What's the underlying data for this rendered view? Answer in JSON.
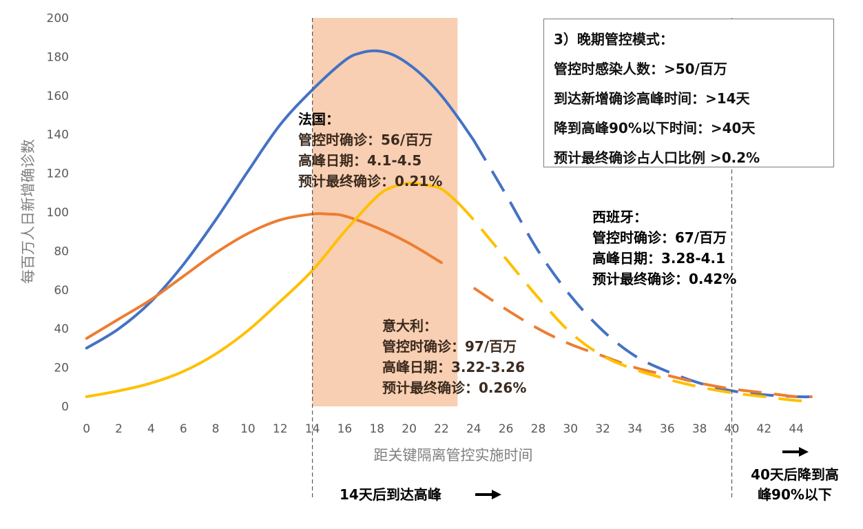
{
  "chart_data": {
    "type": "line",
    "title": "",
    "xlabel": "距关键隔离管控实施时间",
    "ylabel": "每百万人日新增确诊数",
    "xlim": [
      -0.5,
      45.7
    ],
    "ylim": [
      0,
      200
    ],
    "xticks": [
      0,
      2,
      4,
      6,
      8,
      10,
      12,
      14,
      16,
      18,
      20,
      22,
      24,
      26,
      28,
      30,
      32,
      34,
      36,
      38,
      40,
      42,
      44
    ],
    "yticks": [
      0,
      20,
      40,
      60,
      80,
      100,
      120,
      140,
      160,
      180,
      200
    ],
    "grid": false,
    "highlight_band": {
      "x_start": 14,
      "x_end": 23,
      "color": "#f8cfb2"
    },
    "markers": [
      14,
      40
    ],
    "series": [
      {
        "color": "#4472c4",
        "solid_until": 24,
        "x": [
          0,
          2,
          4,
          6,
          8,
          10,
          12,
          14,
          16,
          17,
          18,
          19,
          20,
          21,
          22,
          23,
          24,
          26,
          28,
          30,
          32,
          34,
          36,
          38,
          40,
          42,
          44,
          45
        ],
        "y": [
          30,
          40,
          54,
          73,
          96,
          121,
          145,
          163,
          178,
          182,
          183,
          181,
          176,
          169,
          160,
          149,
          137,
          109,
          80,
          57,
          39,
          26,
          18,
          12,
          8,
          6,
          5,
          5
        ]
      },
      {
        "color": "#ed7d31",
        "solid_until": 23,
        "x": [
          0,
          2,
          4,
          6,
          8,
          10,
          12,
          14,
          15,
          16,
          18,
          20,
          22,
          24,
          26,
          28,
          30,
          32,
          34,
          36,
          38,
          40,
          42,
          44,
          45
        ],
        "y": [
          35,
          45,
          55,
          67,
          79,
          89,
          96,
          99,
          99,
          98,
          92,
          84,
          74,
          61,
          50,
          40,
          32,
          26,
          20,
          16,
          12,
          9,
          7,
          5,
          5
        ]
      },
      {
        "color": "#ffc000",
        "solid_until": 23,
        "x": [
          0,
          2,
          4,
          6,
          8,
          10,
          12,
          14,
          16,
          18,
          19,
          20,
          21,
          22,
          23,
          24,
          26,
          28,
          30,
          32,
          34,
          36,
          38,
          40,
          42,
          44,
          45
        ],
        "y": [
          5,
          8,
          12,
          18,
          27,
          39,
          54,
          70,
          90,
          108,
          113,
          115,
          114,
          112,
          105,
          96,
          76,
          56,
          38,
          26,
          19,
          14,
          10,
          7,
          5,
          3,
          3
        ]
      }
    ],
    "annotations": [
      {
        "lines": [
          "法国：",
          "管控时确诊：56/百万",
          "高峰日期：4.1-4.5",
          "预计最终确诊：0.21%"
        ]
      },
      {
        "lines": [
          "西班牙：",
          "管控时确诊：67/百万",
          "高峰日期：3.28-4.1",
          "预计最终确诊：0.42%"
        ]
      },
      {
        "lines": [
          "意大利：",
          "管控时确诊：97/百万",
          "高峰日期：3.22-3.26",
          "预计最终确诊：0.26%"
        ]
      }
    ],
    "bottom_notes": {
      "peak_note": "14天后到达高峰",
      "decline_note": [
        "40天后降到高",
        "峰90%以下"
      ]
    }
  },
  "info_box": {
    "lines": [
      "3）晚期管控模式：",
      "管控时感染人数：>50/百万",
      "到达新增确诊高峰时间：>14天",
      "降到高峰90%以下时间：>40天",
      "预计最终确诊占人口比例 >0.2%"
    ]
  }
}
